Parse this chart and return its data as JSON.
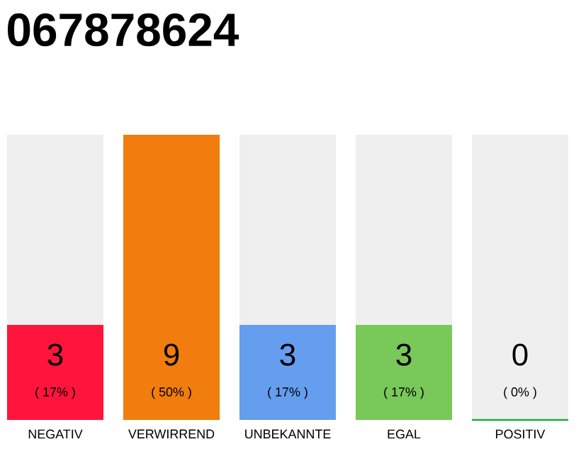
{
  "chart_data": {
    "type": "bar",
    "title": "067878624",
    "categories": [
      "NEGATIV",
      "VERWIRREND",
      "UNBEKANNTE",
      "EGAL",
      "POSITIV"
    ],
    "values": [
      3,
      9,
      3,
      3,
      0
    ],
    "colors": [
      "#ff153c",
      "#f07d0e",
      "#659eee",
      "#79c85a",
      "#22aa44"
    ],
    "value_labels": [
      "3",
      "9",
      "3",
      "3",
      "0"
    ],
    "annotations": [
      "( 17% )",
      "( 50% )",
      "( 17% )",
      "( 17% )",
      "( 0% )"
    ],
    "bands": [
      {
        "axis": "x",
        "from": "NEGATIV",
        "to": "NEGATIV",
        "color": "#efefef"
      },
      {
        "axis": "x",
        "from": "UNBEKANNTE",
        "to": "UNBEKANNTE",
        "color": "#efefef"
      },
      {
        "axis": "x",
        "from": "EGAL",
        "to": "EGAL",
        "color": "#efefef"
      },
      {
        "axis": "x",
        "from": "POSITIV",
        "to": "POSITIV",
        "color": "#efefef"
      }
    ]
  }
}
